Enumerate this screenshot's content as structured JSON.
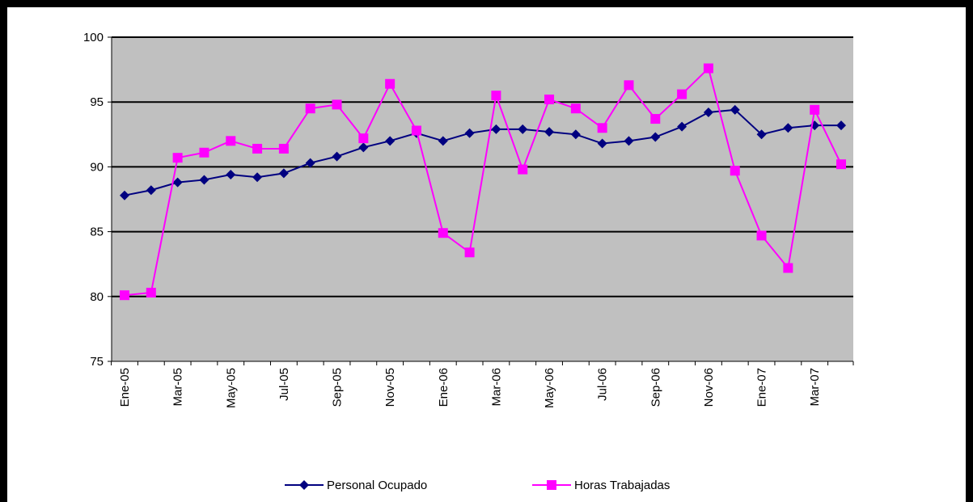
{
  "chart_data": {
    "type": "line",
    "categories": [
      "Ene-05",
      null,
      "Mar-05",
      null,
      "May-05",
      null,
      "Jul-05",
      null,
      "Sep-05",
      null,
      "Nov-05",
      null,
      "Ene-06",
      null,
      "Mar-06",
      null,
      "May-06",
      null,
      "Jul-06",
      null,
      "Sep-06",
      null,
      "Nov-06",
      null,
      "Ene-07",
      null,
      "Mar-07",
      null
    ],
    "series": [
      {
        "name": "Personal Ocupado",
        "color": "#000080",
        "marker": "diamond",
        "values": [
          87.8,
          88.2,
          88.8,
          89.0,
          89.4,
          89.2,
          89.5,
          90.3,
          90.8,
          91.5,
          92.0,
          92.6,
          92.0,
          92.6,
          92.9,
          92.9,
          92.7,
          92.5,
          91.8,
          92.0,
          92.3,
          93.1,
          94.2,
          94.4,
          92.5,
          93.0,
          93.2,
          93.2
        ]
      },
      {
        "name": "Horas Trabajadas",
        "color": "#ff00ff",
        "marker": "square",
        "values": [
          80.1,
          80.3,
          90.7,
          91.1,
          92.0,
          91.4,
          91.4,
          94.5,
          94.8,
          92.2,
          96.4,
          92.8,
          84.9,
          83.4,
          95.5,
          89.8,
          95.2,
          94.5,
          93.0,
          96.3,
          93.7,
          95.6,
          97.6,
          89.7,
          84.7,
          82.2,
          94.4,
          90.2
        ]
      }
    ],
    "ylim": [
      75,
      100
    ],
    "yticks": [
      75,
      80,
      85,
      90,
      95,
      100
    ],
    "grid": true,
    "legend": "bottom"
  }
}
